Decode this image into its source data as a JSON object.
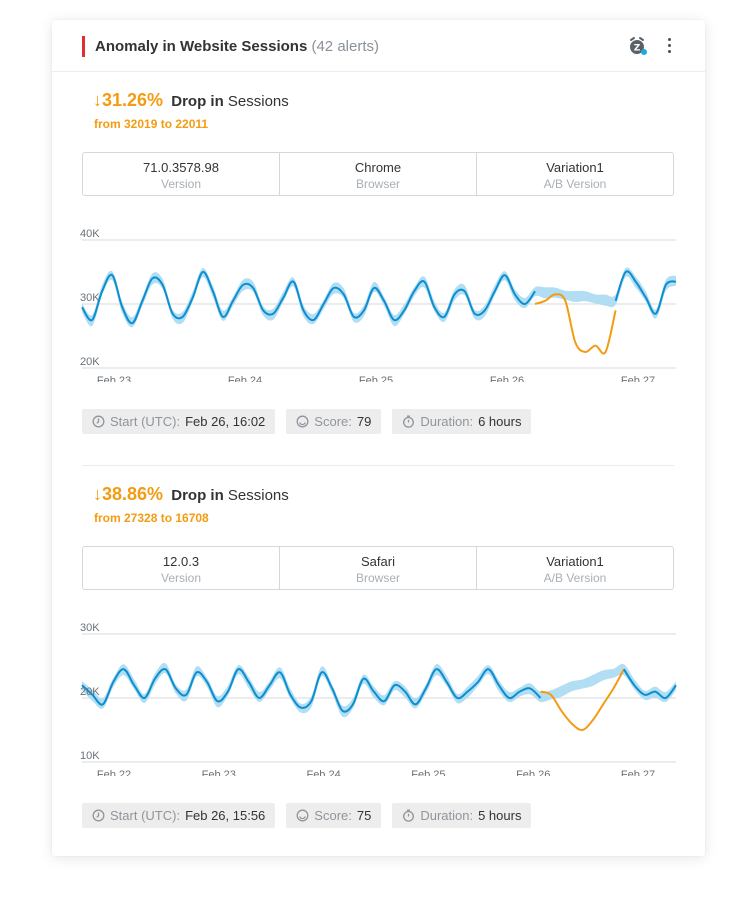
{
  "header": {
    "title": "Anomaly in Website Sessions",
    "alert_count": "(42 alerts)",
    "snooze_icon": "snooze-alarm-icon",
    "menu_icon": "more-vertical-icon",
    "accent_color": "#e02f2f"
  },
  "alerts": [
    {
      "arrow": "↓",
      "percent": "31.26%",
      "drop_word": "Drop in",
      "metric": "Sessions",
      "from_text": "from 32019 to 22011",
      "dimensions": [
        {
          "value": "71.0.3578.98",
          "label": "Version"
        },
        {
          "value": "Chrome",
          "label": "Browser"
        },
        {
          "value": "Variation1",
          "label": "A/B Version"
        }
      ],
      "stats": {
        "start_label": "Start (UTC):",
        "start_value": "Feb 26, 16:02",
        "score_label": "Score:",
        "score_value": "79",
        "duration_label": "Duration:",
        "duration_value": "6 hours"
      },
      "chart_data": {
        "type": "line",
        "y_ticks": [
          "40K",
          "30K",
          "20K"
        ],
        "ylim": [
          20000,
          40000
        ],
        "x_ticks": [
          "Feb 23",
          "Feb 24",
          "Feb 25",
          "Feb 26",
          "Feb 27"
        ],
        "series": [
          {
            "values": [
              29500,
              27500,
              32000,
              34500,
              29500,
              27000,
              30500,
              34000,
              33000,
              28500,
              28000,
              31000,
              35000,
              32000,
              28000,
              30500,
              33000,
              32500,
              29000,
              28500,
              31000,
              33500,
              29000,
              27500,
              30000,
              32500,
              31500,
              28000,
              29000,
              32500,
              30500,
              27500,
              29000,
              32000,
              33500,
              29500,
              28000,
              31500,
              32000,
              28500,
              29000,
              32000,
              34500,
              31500,
              30000,
              32000
            ]
          },
          {
            "values": [
              30000,
              30500,
              31500,
              30500,
              24000,
              22500,
              23500,
              22500,
              29000
            ]
          },
          {
            "values": [
              30500,
              35000,
              33500,
              31000,
              28500,
              33000,
              33500
            ]
          }
        ],
        "colors": {
          "line": "#0d8ecf",
          "band": "#a9daf2",
          "anomaly": "#f39c12",
          "grid": "#d5d8db"
        }
      }
    },
    {
      "arrow": "↓",
      "percent": "38.86%",
      "drop_word": "Drop in",
      "metric": "Sessions",
      "from_text": "from 27328 to 16708",
      "dimensions": [
        {
          "value": "12.0.3",
          "label": "Version"
        },
        {
          "value": "Safari",
          "label": "Browser"
        },
        {
          "value": "Variation1",
          "label": "A/B Version"
        }
      ],
      "stats": {
        "start_label": "Start (UTC):",
        "start_value": "Feb 26, 15:56",
        "score_label": "Score:",
        "score_value": "75",
        "duration_label": "Duration:",
        "duration_value": "5 hours"
      },
      "chart_data": {
        "type": "line",
        "y_ticks": [
          "30K",
          "20K",
          "10K"
        ],
        "ylim": [
          10000,
          30000
        ],
        "x_ticks": [
          "Feb 22",
          "Feb 23",
          "Feb 24",
          "Feb 25",
          "Feb 26",
          "Feb 27"
        ],
        "series": [
          {
            "values": [
              22000,
              20500,
              19000,
              22500,
              24500,
              22000,
              20000,
              23000,
              24500,
              21500,
              20500,
              24000,
              22500,
              19500,
              21000,
              24500,
              22500,
              20000,
              22000,
              24000,
              20500,
              18500,
              19500,
              24000,
              21500,
              18000,
              19000,
              23000,
              21000,
              19500,
              22000,
              21000,
              19000,
              21500,
              24500,
              22500,
              20000,
              21000,
              22500,
              24500,
              22000,
              20000,
              21000,
              21500,
              20000
            ]
          },
          {
            "values": [
              21000,
              20500,
              18000,
              16000,
              15000,
              16500,
              19000,
              21500,
              24500
            ]
          },
          {
            "values": [
              24500,
              22000,
              20500,
              21000,
              20000,
              22000
            ]
          }
        ],
        "colors": {
          "line": "#0d8ecf",
          "band": "#a9daf2",
          "anomaly": "#f39c12",
          "grid": "#d5d8db"
        }
      }
    }
  ]
}
